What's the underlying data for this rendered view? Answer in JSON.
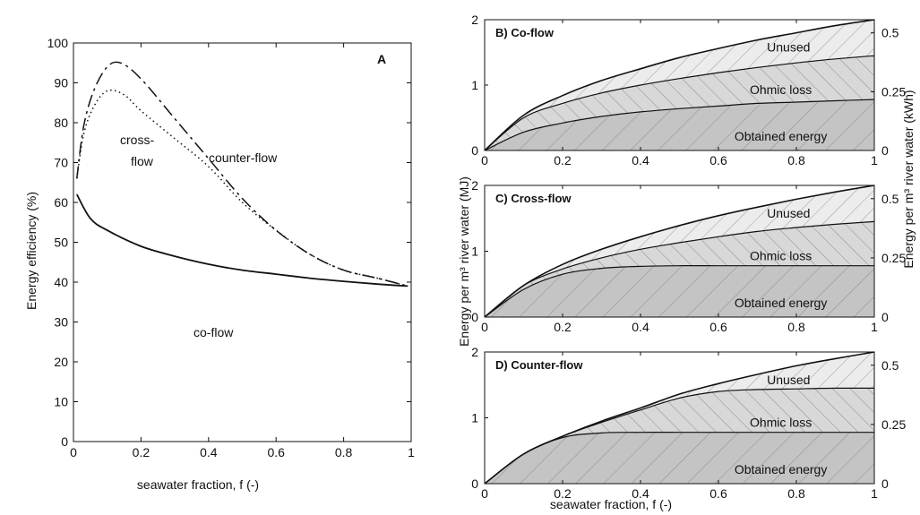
{
  "chart_data": [
    {
      "panel": "A",
      "type": "line",
      "panel_label": "A",
      "xlabel": "seawater fraction, f (-)",
      "ylabel": "Energy efficiency (%)",
      "xlim": [
        0,
        1
      ],
      "ylim": [
        0,
        100
      ],
      "xticks": [
        "0",
        "0.2",
        "0.4",
        "0.6",
        "0.8",
        "1"
      ],
      "yticks": [
        "0",
        "10",
        "20",
        "30",
        "40",
        "50",
        "60",
        "70",
        "80",
        "90",
        "100"
      ],
      "series": [
        {
          "name": "co-flow",
          "style": "solid",
          "x": [
            0.01,
            0.05,
            0.1,
            0.2,
            0.3,
            0.4,
            0.5,
            0.6,
            0.7,
            0.8,
            0.9,
            0.99
          ],
          "y": [
            62,
            56,
            53,
            49,
            46.5,
            44.5,
            43,
            42,
            41,
            40.2,
            39.5,
            39
          ]
        },
        {
          "name": "cross-flow",
          "style": "dotted",
          "x": [
            0.01,
            0.03,
            0.06,
            0.1,
            0.15,
            0.2,
            0.3,
            0.4,
            0.5,
            0.6,
            0.7,
            0.8,
            0.9,
            0.99
          ],
          "y": [
            66,
            77,
            84,
            88,
            87,
            83,
            76,
            69,
            60,
            53,
            47,
            43,
            41,
            39
          ]
        },
        {
          "name": "counter-flow",
          "style": "dashed",
          "x": [
            0.01,
            0.03,
            0.06,
            0.1,
            0.14,
            0.2,
            0.3,
            0.4,
            0.5,
            0.6,
            0.7,
            0.8,
            0.9,
            0.99
          ],
          "y": [
            66,
            79,
            88,
            94,
            95,
            91,
            81,
            71,
            61,
            53,
            47,
            43,
            41,
            39
          ]
        }
      ],
      "annotations": [
        "cross-",
        "flow",
        "counter-flow",
        "co-flow"
      ]
    },
    {
      "panel": "B",
      "type": "area",
      "title": "B) Co-flow",
      "xlim": [
        0,
        1
      ],
      "ylim": [
        0,
        2
      ],
      "y2lim_kWh": [
        0,
        0.556
      ],
      "xticks": [
        "0",
        "0.2",
        "0.4",
        "0.6",
        "0.8",
        "1"
      ],
      "yticks": [
        "0",
        "1",
        "2"
      ],
      "y2ticks": [
        "0",
        "0.25",
        "0.5"
      ],
      "x": [
        0,
        0.1,
        0.2,
        0.3,
        0.4,
        0.5,
        0.6,
        0.7,
        0.8,
        0.9,
        1.0
      ],
      "series": [
        {
          "name": "Obtained energy",
          "values": [
            0,
            0.28,
            0.42,
            0.52,
            0.59,
            0.64,
            0.68,
            0.72,
            0.74,
            0.76,
            0.78
          ]
        },
        {
          "name": "Ohmic loss",
          "values": [
            0,
            0.5,
            0.72,
            0.88,
            1.0,
            1.1,
            1.19,
            1.27,
            1.34,
            1.4,
            1.45
          ]
        },
        {
          "name": "Unused",
          "values": [
            0,
            0.54,
            0.84,
            1.07,
            1.25,
            1.42,
            1.56,
            1.69,
            1.8,
            1.91,
            2.0
          ]
        }
      ]
    },
    {
      "panel": "C",
      "type": "area",
      "title": "C) Cross-flow",
      "xlim": [
        0,
        1
      ],
      "ylim": [
        0,
        2
      ],
      "y2lim_kWh": [
        0,
        0.556
      ],
      "xticks": [
        "0",
        "0.2",
        "0.4",
        "0.6",
        "0.8",
        "1"
      ],
      "yticks": [
        "0",
        "1",
        "2"
      ],
      "y2ticks": [
        "0",
        "0.25",
        "0.5"
      ],
      "x": [
        0,
        0.1,
        0.2,
        0.3,
        0.4,
        0.5,
        0.6,
        0.7,
        0.8,
        0.9,
        1.0
      ],
      "series": [
        {
          "name": "Obtained energy",
          "values": [
            0,
            0.42,
            0.65,
            0.74,
            0.77,
            0.78,
            0.78,
            0.78,
            0.78,
            0.78,
            0.78
          ]
        },
        {
          "name": "Ohmic loss",
          "values": [
            0,
            0.48,
            0.73,
            0.9,
            1.03,
            1.13,
            1.22,
            1.3,
            1.36,
            1.41,
            1.45
          ]
        },
        {
          "name": "Unused",
          "values": [
            0,
            0.48,
            0.8,
            1.03,
            1.22,
            1.39,
            1.54,
            1.67,
            1.79,
            1.9,
            2.0
          ]
        }
      ]
    },
    {
      "panel": "D",
      "type": "area",
      "title": "D) Counter-flow",
      "xlim": [
        0,
        1
      ],
      "ylim": [
        0,
        2
      ],
      "y2lim_kWh": [
        0,
        0.556
      ],
      "xticks": [
        "0",
        "0.2",
        "0.4",
        "0.6",
        "0.8",
        "1"
      ],
      "yticks": [
        "0",
        "1",
        "2"
      ],
      "y2ticks": [
        "0",
        "0.25",
        "0.5"
      ],
      "x": [
        0,
        0.1,
        0.2,
        0.3,
        0.4,
        0.5,
        0.6,
        0.7,
        0.8,
        0.9,
        1.0
      ],
      "series": [
        {
          "name": "Obtained energy",
          "values": [
            0,
            0.45,
            0.7,
            0.77,
            0.78,
            0.78,
            0.78,
            0.78,
            0.78,
            0.78,
            0.78
          ]
        },
        {
          "name": "Ohmic loss",
          "values": [
            0,
            0.45,
            0.72,
            0.93,
            1.12,
            1.3,
            1.4,
            1.43,
            1.44,
            1.45,
            1.45
          ]
        },
        {
          "name": "Unused",
          "values": [
            0,
            0.45,
            0.72,
            0.95,
            1.15,
            1.36,
            1.52,
            1.66,
            1.79,
            1.9,
            2.0
          ]
        }
      ]
    }
  ],
  "shared": {
    "xlabel": "seawater fraction, f (-)",
    "ylabel_left": "Energy per m³ river water (MJ)",
    "ylabel_right": "Energy per m³ river water (kWh)"
  },
  "colors": {
    "line": "#111111",
    "obtained": "#c4c4c4",
    "ohmic": "#d8d8d8",
    "unused": "#ececec",
    "hatch": "#8c8c8c"
  }
}
